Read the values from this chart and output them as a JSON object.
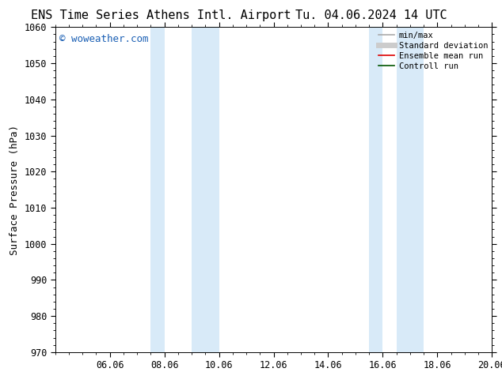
{
  "title_left": "ENS Time Series Athens Intl. Airport",
  "title_right": "Tu. 04.06.2024 14 UTC",
  "ylabel": "Surface Pressure (hPa)",
  "ylim": [
    970,
    1060
  ],
  "yticks": [
    970,
    980,
    990,
    1000,
    1010,
    1020,
    1030,
    1040,
    1050,
    1060
  ],
  "x_total_days": 16,
  "xtick_labels": [
    "06.06",
    "08.06",
    "10.06",
    "12.06",
    "14.06",
    "16.06",
    "18.06",
    "20.06"
  ],
  "xtick_positions": [
    2,
    4,
    6,
    8,
    10,
    12,
    14,
    16
  ],
  "shaded_bands": [
    {
      "x_start": 3.5,
      "x_end": 4.0
    },
    {
      "x_start": 5.0,
      "x_end": 6.0
    },
    {
      "x_start": 11.5,
      "x_end": 12.0
    },
    {
      "x_start": 12.5,
      "x_end": 13.5
    }
  ],
  "background_color": "#ffffff",
  "band_color": "#d8eaf8",
  "watermark_text": "© woweather.com",
  "watermark_color": "#1a5fb4",
  "legend_items": [
    {
      "label": "min/max",
      "color": "#aaaaaa",
      "lw": 1.2,
      "style": "solid"
    },
    {
      "label": "Standard deviation",
      "color": "#cccccc",
      "lw": 5,
      "style": "solid"
    },
    {
      "label": "Ensemble mean run",
      "color": "#dd0000",
      "lw": 1.2,
      "style": "solid"
    },
    {
      "label": "Controll run",
      "color": "#005500",
      "lw": 1.2,
      "style": "solid"
    }
  ],
  "title_fontsize": 11,
  "axis_fontsize": 9,
  "tick_fontsize": 8.5,
  "watermark_fontsize": 9,
  "legend_fontsize": 7.5
}
